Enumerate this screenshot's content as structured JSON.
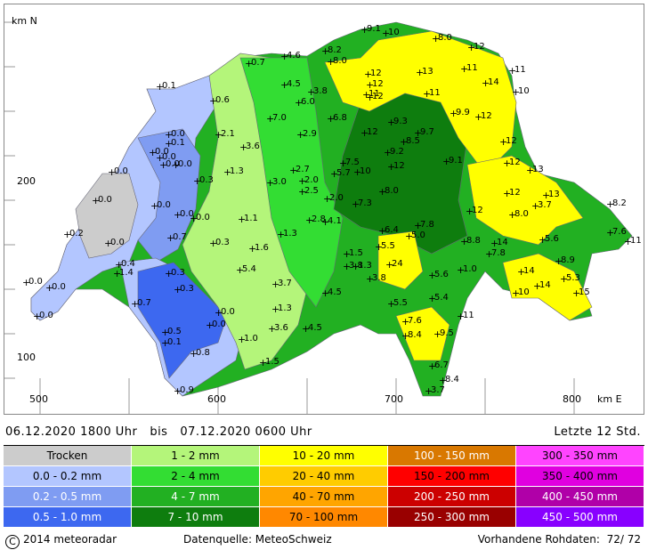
{
  "map": {
    "axis": {
      "north_label": "km N",
      "east_label": "km E",
      "y_ticks": [
        {
          "value": "200"
        },
        {
          "value": "100"
        }
      ],
      "x_ticks": [
        {
          "value": "500"
        },
        {
          "value": "600"
        },
        {
          "value": "700"
        },
        {
          "value": "800"
        }
      ]
    },
    "station_values": [
      "9.1",
      "10",
      "8.0",
      "12",
      "8.2",
      "8.0",
      "4.6",
      "0.7",
      "12",
      "11",
      "11",
      "13",
      "14",
      "12",
      "10",
      "0.1",
      "4.5",
      "12",
      "11",
      "6.0",
      "3.8",
      "11",
      "12",
      "0.6",
      "7.0",
      "9.9",
      "6.8",
      "12",
      "9.3",
      "2.9",
      "12",
      "9.7",
      "8.5",
      "9.2",
      "0.0",
      "2.1",
      "3.6",
      "0.1",
      "0.0",
      "0.0",
      "12",
      "0.0",
      "0.0",
      "0.0",
      "7.5",
      "13",
      "2.7",
      "10",
      "9.1",
      "12",
      "1.3",
      "5.7",
      "0.3",
      "3.0",
      "2.0",
      "0.0",
      "2.5",
      "8.0",
      "12",
      "13",
      "0.0",
      "2.0",
      "7.3",
      "3.7",
      "8.0",
      "8.2",
      "0.0",
      "0.0",
      "1.1",
      "2.8",
      "4.1",
      "12",
      "6.4",
      "7.8",
      "1.3",
      "0.2",
      "7.6",
      "11",
      "0.7",
      "5.0",
      "8.8",
      "5.6",
      "14",
      "0.0",
      "1.6",
      "0.3",
      "5.5",
      "1.5",
      "7.8",
      "1.3",
      "8.9",
      "0.0",
      "0.4",
      "0.3",
      "24",
      "5.4",
      "3.8",
      "14",
      "1.4",
      "1.0",
      "5.6",
      "0.0",
      "5.3",
      "0.3",
      "3.7",
      "3.8",
      "14",
      "0.7",
      "4.5",
      "10",
      "15",
      "5.4",
      "1.3",
      "5.5",
      "0.0",
      "0.0",
      "11",
      "7.6",
      "0.0",
      "3.6",
      "4.5",
      "0.5",
      "8.4",
      "9.5",
      "0.1",
      "1.0",
      "0.8",
      "1.5",
      "6.7",
      "8.4",
      "0.9",
      "3.7"
    ]
  },
  "period": {
    "from": "06.12.2020",
    "from_time": "1800 Uhr",
    "bis": "bis",
    "to": "07.12.2020",
    "to_time": "0600 Uhr",
    "last": "Letzte 12 Std."
  },
  "legend": [
    {
      "label": "Trocken",
      "color": "#cccccc"
    },
    {
      "label": "0.0 - 0.2 mm",
      "color": "#b3c6ff"
    },
    {
      "label": "0.2 - 0.5 mm",
      "color": "#7f9cf2"
    },
    {
      "label": "0.5 - 1.0 mm",
      "color": "#3d68f0"
    },
    {
      "label": "1 - 2 mm",
      "color": "#b4f57a"
    },
    {
      "label": "2 - 4 mm",
      "color": "#33dd33"
    },
    {
      "label": "4 - 7 mm",
      "color": "#22b022"
    },
    {
      "label": "7 - 10 mm",
      "color": "#0e7d0e"
    },
    {
      "label": "10 - 20 mm",
      "color": "#ffff00"
    },
    {
      "label": "20 - 40 mm",
      "color": "#ffcc00"
    },
    {
      "label": "40 - 70 mm",
      "color": "#ffa500"
    },
    {
      "label": "70 - 100 mm",
      "color": "#ff8800"
    },
    {
      "label": "100 - 150 mm",
      "color": "#d97800"
    },
    {
      "label": "150 - 200 mm",
      "color": "#ff0000"
    },
    {
      "label": "200 - 250 mm",
      "color": "#cc0000"
    },
    {
      "label": "250 - 300 mm",
      "color": "#990000"
    },
    {
      "label": "300 - 350 mm",
      "color": "#ff44ff"
    },
    {
      "label": "350 - 400 mm",
      "color": "#e000e0"
    },
    {
      "label": "400 - 450 mm",
      "color": "#b000a8"
    },
    {
      "label": "450 - 500 mm",
      "color": "#8800ff"
    }
  ],
  "footer": {
    "copyright_symbol": "C",
    "copyright": "2014  meteoradar",
    "source": "Datenquelle: MeteoSchweiz",
    "rawdata_label": "Vorhandene Rohdaten:",
    "rawdata_value": "72/ 72"
  }
}
